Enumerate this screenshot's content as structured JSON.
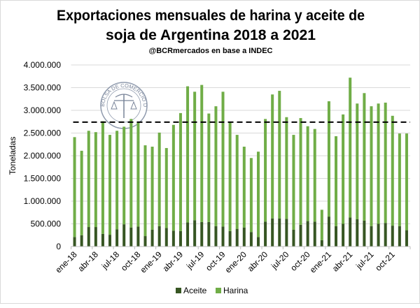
{
  "chart_data": {
    "type": "bar",
    "stacked": true,
    "title_line1": "Exportaciones mensuales de harina y aceite de",
    "title_line2": "soja de Argentina 2018 a 2021",
    "subtitle": "@BCRmercados  en base a INDEC",
    "ylabel": "Toneladas",
    "xlabel": "",
    "ylim": [
      0,
      4000000
    ],
    "yticks": [
      "0",
      "500.000",
      "1.000.000",
      "1.500.000",
      "2.000.000",
      "2.500.000",
      "3.000.000",
      "3.500.000",
      "4.000.000"
    ],
    "ytick_values": [
      0,
      500000,
      1000000,
      1500000,
      2000000,
      2500000,
      3000000,
      3500000,
      4000000
    ],
    "grid": true,
    "legend_position": "bottom",
    "categories": [
      "ene-18",
      "feb-18",
      "mar-18",
      "abr-18",
      "may-18",
      "jun-18",
      "jul-18",
      "ago-18",
      "sep-18",
      "oct-18",
      "nov-18",
      "dic-18",
      "ene-19",
      "feb-19",
      "mar-19",
      "abr-19",
      "may-19",
      "jun-19",
      "jul-19",
      "ago-19",
      "sep-19",
      "oct-19",
      "nov-19",
      "dic-19",
      "ene-20",
      "feb-20",
      "mar-20",
      "abr-20",
      "may-20",
      "jun-20",
      "jul-20",
      "ago-20",
      "sep-20",
      "oct-20",
      "nov-20",
      "dic-20",
      "ene-21",
      "feb-21",
      "mar-21",
      "abr-21",
      "may-21",
      "jun-21",
      "jul-21",
      "ago-21",
      "sep-21",
      "oct-21",
      "nov-21",
      "dic-21"
    ],
    "xtick_labels": [
      "ene-18",
      "abr-18",
      "jul-18",
      "oct-18",
      "ene-19",
      "abr-19",
      "jul-19",
      "oct-19",
      "ene-20",
      "abr-20",
      "jul-20",
      "oct-20",
      "ene-21",
      "abr-21",
      "jul-21",
      "oct-21"
    ],
    "series": [
      {
        "name": "Aceite",
        "color": "#375623",
        "values": [
          210000,
          250000,
          430000,
          430000,
          280000,
          260000,
          380000,
          490000,
          420000,
          440000,
          230000,
          370000,
          450000,
          410000,
          350000,
          340000,
          530000,
          580000,
          540000,
          540000,
          450000,
          440000,
          340000,
          390000,
          420000,
          320000,
          210000,
          550000,
          620000,
          620000,
          610000,
          370000,
          480000,
          560000,
          550000,
          140000,
          660000,
          450000,
          500000,
          640000,
          600000,
          570000,
          450000,
          500000,
          520000,
          460000,
          450000,
          360000
        ]
      },
      {
        "name": "Harina",
        "color": "#70ad47",
        "values": [
          2200000,
          1860000,
          2120000,
          2090000,
          2480000,
          2200000,
          2170000,
          2150000,
          2390000,
          2310000,
          2000000,
          1830000,
          2060000,
          1760000,
          2330000,
          2600000,
          3000000,
          2830000,
          3020000,
          2390000,
          2640000,
          2970000,
          2400000,
          2070000,
          1780000,
          1630000,
          1880000,
          2260000,
          2730000,
          2810000,
          2240000,
          2090000,
          2350000,
          2090000,
          2040000,
          670000,
          2540000,
          1980000,
          2410000,
          3080000,
          2550000,
          2810000,
          2640000,
          2650000,
          2650000,
          2420000,
          2040000,
          2130000
        ]
      }
    ],
    "reference_line": {
      "value": 2740000,
      "style": "dashed",
      "color": "#000000"
    }
  },
  "logo": {
    "text": "BOLSA DE COMERCIO DE ROSARIO"
  }
}
